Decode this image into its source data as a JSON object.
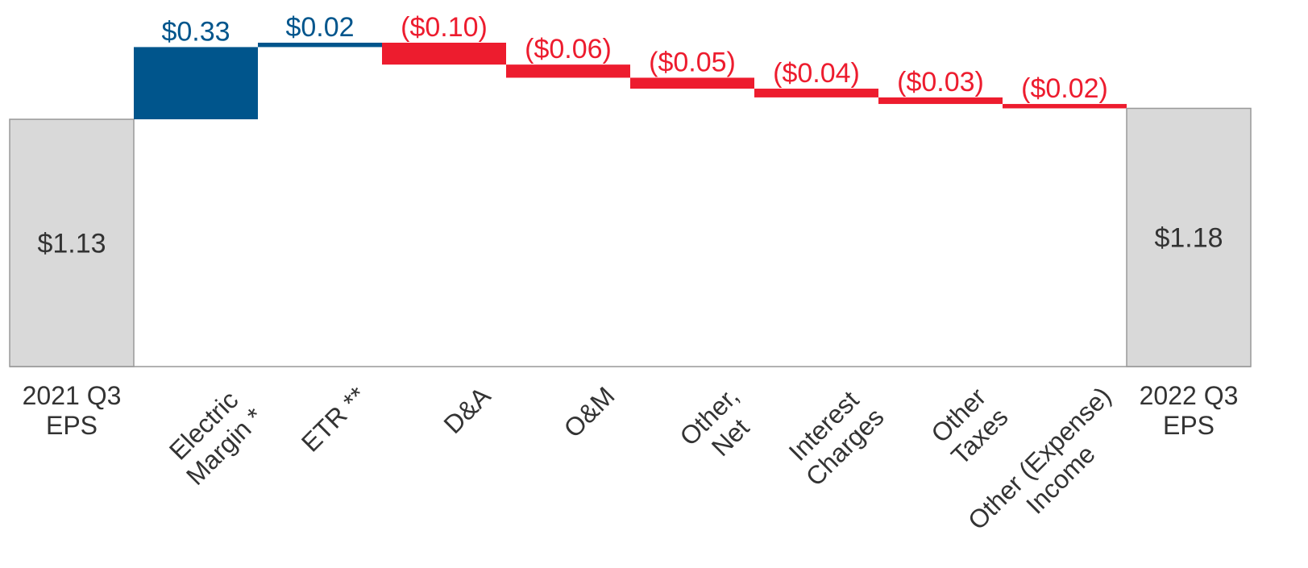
{
  "chart_data": {
    "type": "waterfall",
    "categories": [
      [
        "2021 Q3",
        "EPS"
      ],
      [
        "Electric",
        "Margin *"
      ],
      [
        "ETR **"
      ],
      [
        "D&A"
      ],
      [
        "O&M"
      ],
      [
        "Other,",
        "Net"
      ],
      [
        "Interest",
        "Charges"
      ],
      [
        "Other",
        "Taxes"
      ],
      [
        "Other (Expense)",
        "Income"
      ],
      [
        "2022 Q3",
        "EPS"
      ]
    ],
    "values": [
      1.13,
      0.33,
      0.02,
      -0.1,
      -0.06,
      -0.05,
      -0.04,
      -0.03,
      -0.02,
      1.18
    ],
    "value_labels": [
      "$1.13",
      "$0.33",
      "$0.02",
      "($0.10)",
      "($0.06)",
      "($0.05)",
      "($0.04)",
      "($0.03)",
      "($0.02)",
      "$1.18"
    ],
    "measure": [
      "total",
      "relative",
      "relative",
      "relative",
      "relative",
      "relative",
      "relative",
      "relative",
      "relative",
      "total"
    ],
    "colors": {
      "increase": "#00558c",
      "decrease": "#ed1c2e",
      "total": "#d9d9d9"
    }
  }
}
